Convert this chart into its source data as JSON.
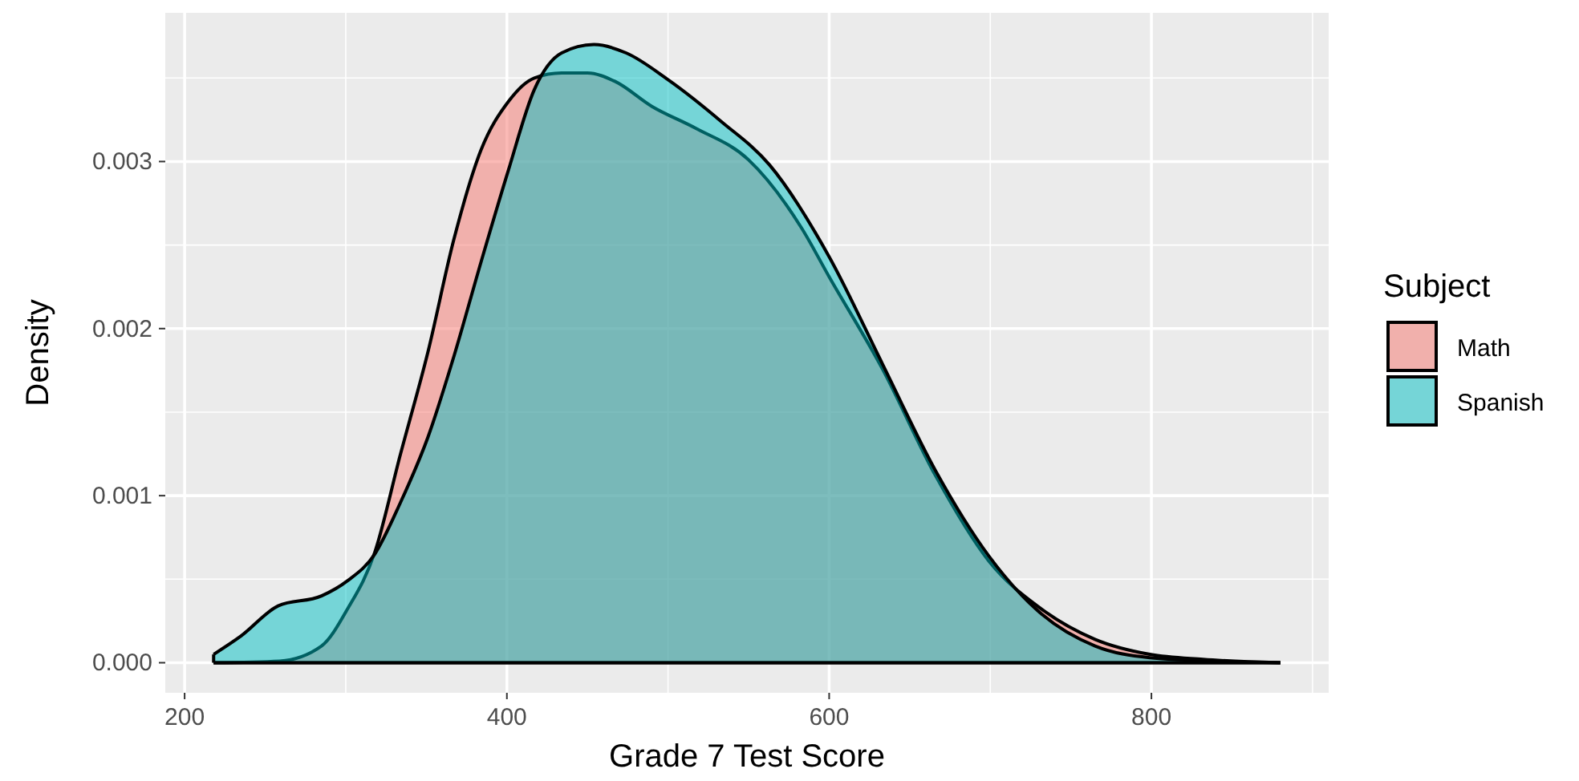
{
  "chart_data": {
    "type": "area",
    "xlabel": "Grade 7 Test Score",
    "ylabel": "Density",
    "legend_title": "Subject",
    "legend": "right",
    "grid": true,
    "xlim": [
      188,
      910
    ],
    "ylim": [
      -0.00018,
      0.00389
    ],
    "xticks": [
      200,
      400,
      600,
      800
    ],
    "yticks": [
      {
        "value": 0,
        "label": "0.000"
      },
      {
        "value": 0.001,
        "label": "0.001"
      },
      {
        "value": 0.002,
        "label": "0.002"
      },
      {
        "value": 0.003,
        "label": "0.003"
      }
    ],
    "series": [
      {
        "name": "Math",
        "color": "#f8766d",
        "x": [
          218,
          259,
          285,
          301,
          318,
          334,
          351,
          367,
          384,
          401,
          417,
          434,
          450,
          467,
          490,
          517,
          550,
          583,
          600,
          633,
          666,
          699,
          732,
          765,
          799,
          832,
          880
        ],
        "values": [
          0,
          1e-05,
          0.0001,
          0.00032,
          0.00066,
          0.00125,
          0.00186,
          0.00253,
          0.00307,
          0.00336,
          0.0035,
          0.00353,
          0.00353,
          0.00348,
          0.00333,
          0.0032,
          0.00301,
          0.0026,
          0.00231,
          0.00176,
          0.00112,
          0.00061,
          0.00032,
          0.00014,
          5e-05,
          2e-05,
          0
        ]
      },
      {
        "name": "Spanish",
        "color": "#00bfc4",
        "x": [
          218,
          235,
          258,
          285,
          301,
          318,
          334,
          351,
          367,
          384,
          401,
          417,
          434,
          454,
          474,
          500,
          533,
          563,
          600,
          633,
          666,
          699,
          732,
          765,
          799,
          840,
          880
        ],
        "values": [
          5e-05,
          0.00016,
          0.00034,
          0.0004,
          0.00049,
          0.00065,
          0.00096,
          0.00135,
          0.00183,
          0.0024,
          0.00295,
          0.00343,
          0.00365,
          0.0037,
          0.00365,
          0.00349,
          0.00324,
          0.00298,
          0.00243,
          0.00179,
          0.00115,
          0.00064,
          0.00029,
          0.0001,
          3e-05,
          1e-05,
          0
        ]
      }
    ]
  }
}
